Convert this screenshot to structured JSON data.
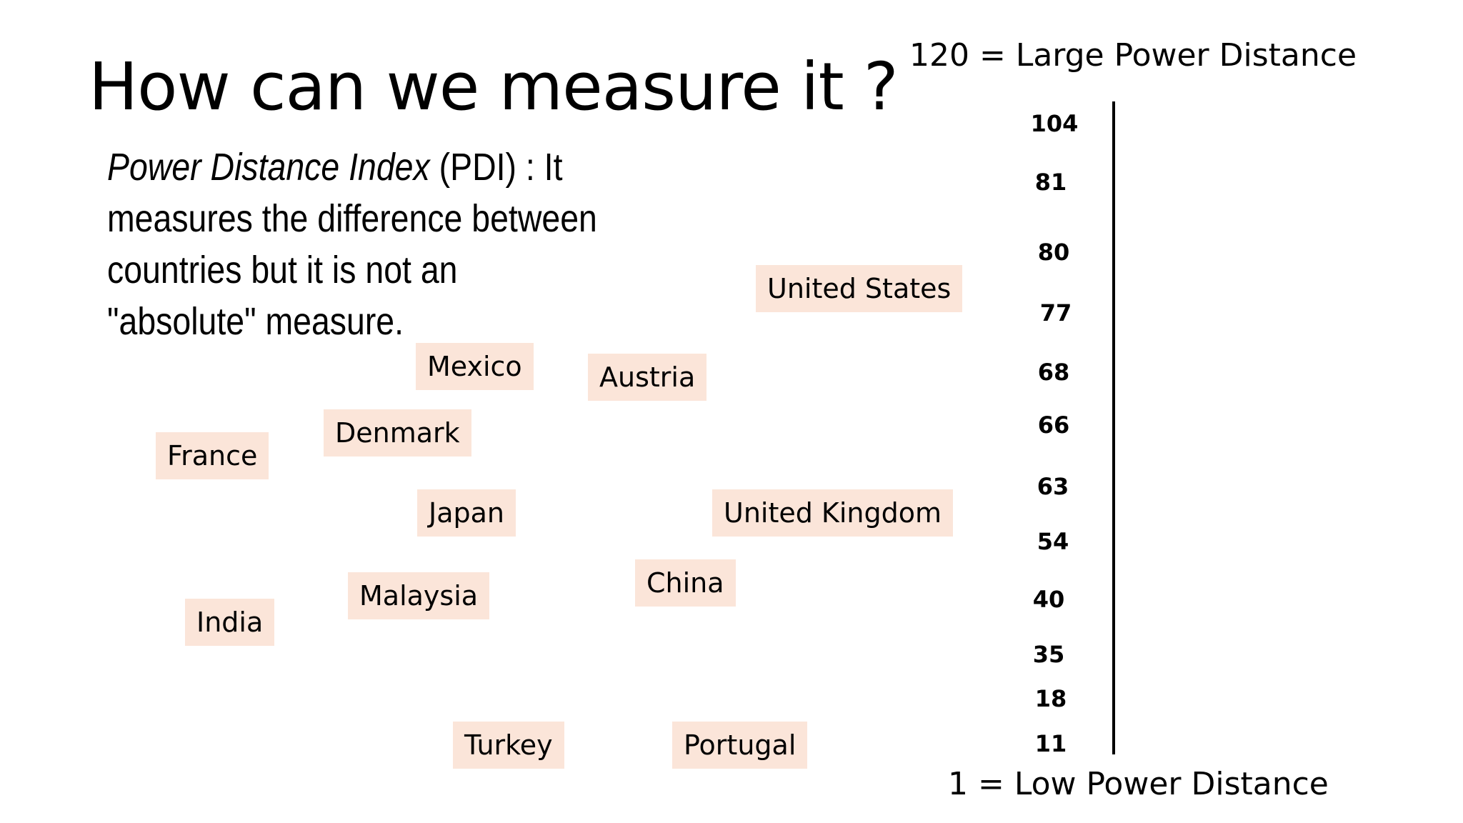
{
  "slide": {
    "title": "How can we measure it ?",
    "definition": {
      "term": "Power Distance Index",
      "abbrev": " (PDI) : It measures the difference between countries but it is not an \"absolute\" measure."
    },
    "scale": {
      "top_label": "120 = Large Power Distance",
      "bottom_label": "1 = Low Power Distance",
      "ticks": [
        "104",
        "81",
        "80",
        "77",
        "68",
        "66",
        "63",
        "54",
        "40",
        "35",
        "18",
        "11"
      ]
    },
    "countries": [
      "United States",
      "Mexico",
      "Austria",
      "Denmark",
      "France",
      "Japan",
      "United Kingdom",
      "China",
      "Malaysia",
      "India",
      "Turkey",
      "Portugal"
    ]
  }
}
